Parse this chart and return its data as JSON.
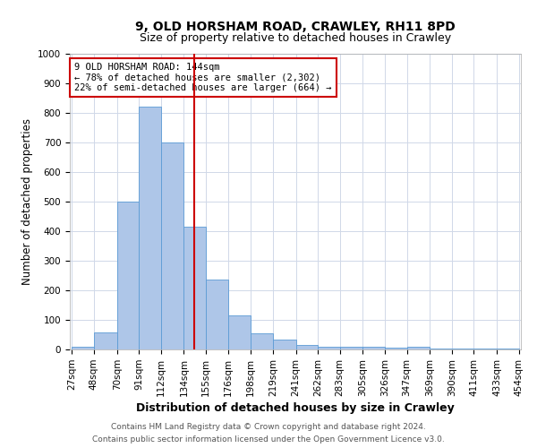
{
  "title": "9, OLD HORSHAM ROAD, CRAWLEY, RH11 8PD",
  "subtitle": "Size of property relative to detached houses in Crawley",
  "xlabel": "Distribution of detached houses by size in Crawley",
  "ylabel": "Number of detached properties",
  "footnote1": "Contains HM Land Registry data © Crown copyright and database right 2024.",
  "footnote2": "Contains public sector information licensed under the Open Government Licence v3.0.",
  "bin_edges": [
    27,
    48,
    70,
    91,
    112,
    134,
    155,
    176,
    198,
    219,
    241,
    262,
    283,
    305,
    326,
    347,
    369,
    390,
    411,
    433,
    454
  ],
  "bar_heights": [
    8,
    57,
    500,
    820,
    700,
    415,
    235,
    115,
    55,
    32,
    15,
    10,
    10,
    8,
    5,
    8,
    3,
    2,
    2,
    2
  ],
  "bar_color": "#aec6e8",
  "bar_edgecolor": "#5b9bd5",
  "vline_x": 144,
  "vline_color": "#cc0000",
  "annotation_text": "9 OLD HORSHAM ROAD: 144sqm\n← 78% of detached houses are smaller (2,302)\n22% of semi-detached houses are larger (664) →",
  "annotation_box_edgecolor": "#cc0000",
  "ylim": [
    0,
    1000
  ],
  "yticks": [
    0,
    100,
    200,
    300,
    400,
    500,
    600,
    700,
    800,
    900,
    1000
  ],
  "grid_color": "#d0d8e8",
  "title_fontsize": 10,
  "subtitle_fontsize": 9,
  "xlabel_fontsize": 9,
  "ylabel_fontsize": 8.5,
  "tick_fontsize": 7.5,
  "annotation_fontsize": 7.5,
  "footnote_fontsize": 6.5
}
